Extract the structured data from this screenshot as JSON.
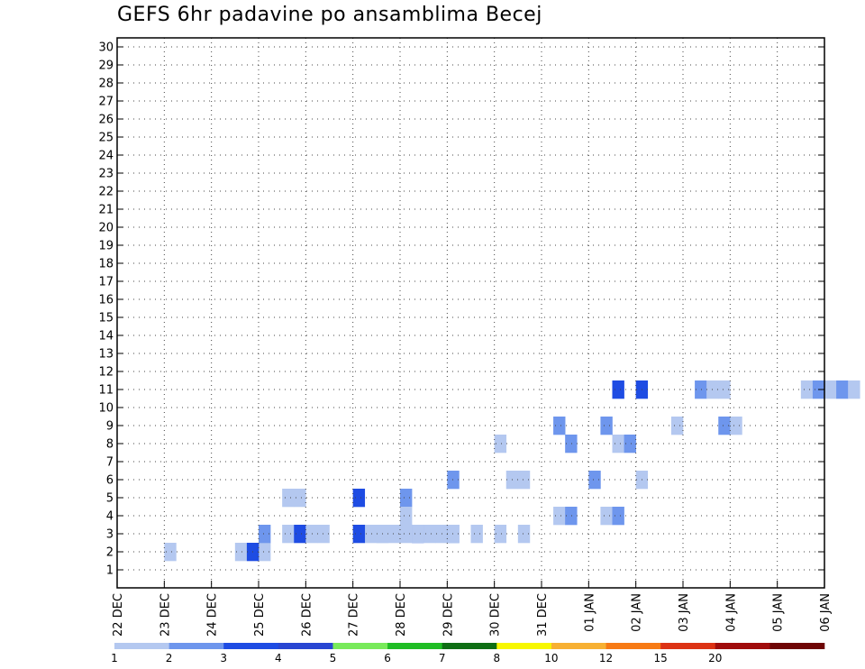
{
  "chart_data": {
    "type": "heatmap",
    "title": "GEFS 6hr padavine po ansamblima Becej",
    "x_tick_labels": [
      "22 DEC",
      "23 DEC",
      "24 DEC",
      "25 DEC",
      "26 DEC",
      "27 DEC",
      "28 DEC",
      "29 DEC",
      "30 DEC",
      "31 DEC",
      "01 JAN",
      "02 JAN",
      "03 JAN",
      "04 JAN",
      "05 JAN",
      "06 JAN"
    ],
    "y_tick_labels": [
      1,
      2,
      3,
      4,
      5,
      6,
      7,
      8,
      9,
      10,
      11,
      12,
      13,
      14,
      15,
      16,
      17,
      18,
      19,
      20,
      21,
      22,
      23,
      24,
      25,
      26,
      27,
      28,
      29,
      30
    ],
    "steps_per_day": 4,
    "grid": true,
    "colorbar": {
      "levels": [
        1,
        2,
        3,
        4,
        5,
        6,
        7,
        8,
        10,
        12,
        15,
        20
      ],
      "level_labels": [
        "1",
        "2",
        "3",
        "4",
        "5",
        "6",
        "7",
        "8",
        "10",
        "12",
        "15",
        "20"
      ],
      "colors": [
        "#b4c8f0",
        "#6e96ed",
        "#1e4ce3",
        "#2846d2",
        "#78ea5a",
        "#1fbd24",
        "#0e6e14",
        "#f7f700",
        "#f7b032",
        "#f77a14",
        "#dc3214",
        "#a00c0c",
        "#6e0505"
      ]
    },
    "cells": [
      [
        1,
        0,
        2,
        0.5
      ],
      [
        1,
        8,
        2,
        0.5
      ],
      [
        1,
        11,
        5,
        0.5
      ],
      [
        2,
        2,
        2,
        1
      ],
      [
        2,
        3,
        2,
        3
      ],
      [
        2,
        6,
        5,
        1
      ],
      [
        2,
        12,
        5,
        3
      ],
      [
        2,
        16,
        5,
        2
      ],
      [
        3,
        0,
        3,
        2
      ],
      [
        3,
        2,
        3,
        1
      ],
      [
        3,
        3,
        3,
        3
      ],
      [
        3,
        5,
        3,
        1
      ],
      [
        3,
        9,
        3,
        1
      ],
      [
        3,
        10,
        3,
        1
      ],
      [
        3,
        13,
        3,
        3
      ],
      [
        3,
        15,
        3,
        0.5
      ],
      [
        4,
        0,
        3,
        0.5
      ],
      [
        4,
        6,
        3,
        1
      ],
      [
        4,
        9,
        3,
        1
      ],
      [
        4,
        12,
        3,
        2
      ],
      [
        4,
        14,
        3,
        0.5
      ],
      [
        4,
        16,
        3,
        1
      ],
      [
        4,
        18,
        3,
        1
      ],
      [
        5,
        0,
        3,
        3
      ],
      [
        5,
        3,
        3,
        0.5
      ],
      [
        5,
        4,
        3,
        0.5
      ],
      [
        5,
        6,
        3,
        1
      ],
      [
        5,
        8,
        3,
        1
      ],
      [
        6,
        0,
        4,
        1
      ],
      [
        6,
        13,
        4,
        1
      ],
      [
        6,
        14,
        4,
        2
      ],
      [
        6,
        17,
        4,
        0.5
      ],
      [
        6,
        18,
        4,
        2
      ],
      [
        7,
        0,
        6,
        2
      ],
      [
        7,
        5,
        6,
        1
      ],
      [
        7,
        6,
        6,
        0.5
      ],
      [
        7,
        12,
        6,
        2
      ],
      [
        7,
        16,
        6,
        1
      ],
      [
        8,
        0,
        8,
        1
      ],
      [
        8,
        6,
        8,
        2
      ],
      [
        8,
        10,
        8,
        1
      ],
      [
        8,
        11,
        8,
        2
      ],
      [
        9,
        1,
        9,
        2
      ],
      [
        9,
        5,
        9,
        2
      ],
      [
        9,
        11,
        9,
        1
      ],
      [
        9,
        15,
        9,
        2
      ],
      [
        9,
        16,
        9,
        1
      ],
      [
        10,
        2,
        11,
        3
      ],
      [
        10,
        4,
        11,
        3
      ],
      [
        10,
        9,
        11,
        2
      ],
      [
        10,
        10,
        11,
        1
      ],
      [
        10,
        11,
        11,
        1
      ],
      [
        10,
        18,
        11,
        1
      ],
      [
        10,
        19,
        11,
        2
      ],
      [
        10,
        20,
        11,
        0.5
      ],
      [
        10,
        21,
        11,
        2
      ],
      [
        10,
        22,
        11,
        1
      ]
    ]
  }
}
